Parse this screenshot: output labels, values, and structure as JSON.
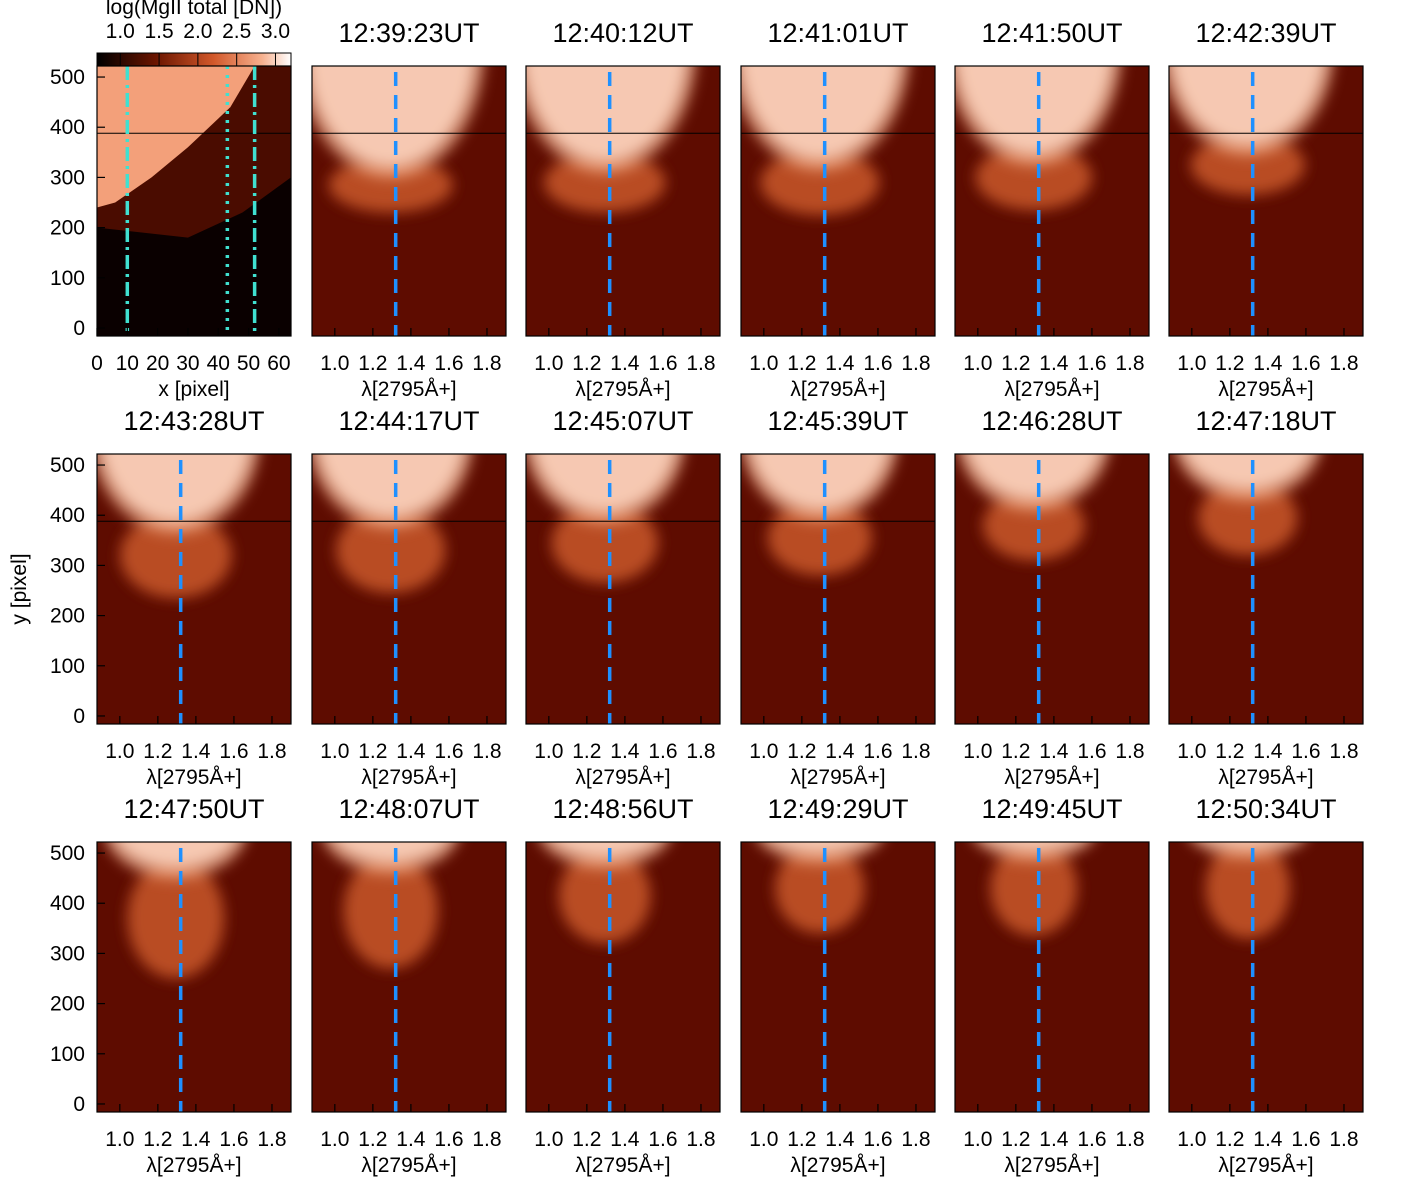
{
  "chart_data": [
    {
      "type": "image",
      "colorbar_label": "log(MgII total [DN])",
      "clim": [
        0.7,
        3.2
      ],
      "cticks": [
        {
          "value": 1,
          "label": "1.0"
        },
        1.5,
        {
          "value": 2,
          "label": "2.0"
        },
        2.5,
        {
          "value": 3,
          "label": "3.0"
        }
      ],
      "xlabel": "x [pixel]",
      "xlim": [
        0,
        64
      ],
      "xticks": [
        0,
        10,
        20,
        30,
        40,
        50,
        60
      ],
      "ylim": [
        -16,
        522
      ],
      "yticks": [
        0,
        100,
        200,
        300,
        400,
        500
      ],
      "vlines": [
        10,
        43,
        52
      ],
      "vline_styles": [
        "dashdot",
        "dotted",
        "dashdot"
      ],
      "vline_color": "#40e0d0"
    },
    {
      "type": "spectrum",
      "title": "12:39:23UT",
      "xlabel": "λ[2795Å+]",
      "xlim": [
        0.88,
        1.9
      ],
      "xticks": [
        {
          "value": 1,
          "label": "1.0"
        },
        1.2,
        1.4,
        1.6,
        1.8
      ],
      "ylim": [
        -16,
        522
      ],
      "vline": 1.32,
      "vline_color": "#1e90ff"
    },
    {
      "type": "spectrum",
      "title": "12:40:12UT",
      "xlabel": "λ[2795Å+]",
      "xlim": [
        0.88,
        1.9
      ],
      "xticks": [
        {
          "value": 1,
          "label": "1.0"
        },
        1.2,
        1.4,
        1.6,
        1.8
      ],
      "ylim": [
        -16,
        522
      ],
      "vline": 1.32,
      "vline_color": "#1e90ff"
    },
    {
      "type": "spectrum",
      "title": "12:41:01UT",
      "xlabel": "λ[2795Å+]",
      "xlim": [
        0.88,
        1.9
      ],
      "xticks": [
        {
          "value": 1,
          "label": "1.0"
        },
        1.2,
        1.4,
        1.6,
        1.8
      ],
      "ylim": [
        -16,
        522
      ],
      "vline": 1.32,
      "vline_color": "#1e90ff"
    },
    {
      "type": "spectrum",
      "title": "12:41:50UT",
      "xlabel": "λ[2795Å+]",
      "xlim": [
        0.88,
        1.9
      ],
      "xticks": [
        {
          "value": 1,
          "label": "1.0"
        },
        1.2,
        1.4,
        1.6,
        1.8
      ],
      "ylim": [
        -16,
        522
      ],
      "vline": 1.32,
      "vline_color": "#1e90ff"
    },
    {
      "type": "spectrum",
      "title": "12:42:39UT",
      "xlabel": "λ[2795Å+]",
      "xlim": [
        0.88,
        1.9
      ],
      "xticks": [
        {
          "value": 1,
          "label": "1.0"
        },
        1.2,
        1.4,
        1.6,
        1.8
      ],
      "ylim": [
        -16,
        522
      ],
      "vline": 1.32,
      "vline_color": "#1e90ff"
    },
    {
      "type": "spectrum",
      "title": "12:43:28UT",
      "xlabel": "λ[2795Å+]",
      "ylabel": "y [pixel]",
      "xlim": [
        0.88,
        1.9
      ],
      "xticks": [
        {
          "value": 1,
          "label": "1.0"
        },
        1.2,
        1.4,
        1.6,
        1.8
      ],
      "ylim": [
        -16,
        522
      ],
      "yticks": [
        0,
        100,
        200,
        300,
        400,
        500
      ],
      "vline": 1.32,
      "vline_color": "#1e90ff"
    },
    {
      "type": "spectrum",
      "title": "12:44:17UT",
      "xlabel": "λ[2795Å+]",
      "xlim": [
        0.88,
        1.9
      ],
      "xticks": [
        {
          "value": 1,
          "label": "1.0"
        },
        1.2,
        1.4,
        1.6,
        1.8
      ],
      "ylim": [
        -16,
        522
      ],
      "vline": 1.32,
      "vline_color": "#1e90ff"
    },
    {
      "type": "spectrum",
      "title": "12:45:07UT",
      "xlabel": "λ[2795Å+]",
      "xlim": [
        0.88,
        1.9
      ],
      "xticks": [
        {
          "value": 1,
          "label": "1.0"
        },
        1.2,
        1.4,
        1.6,
        1.8
      ],
      "ylim": [
        -16,
        522
      ],
      "vline": 1.32,
      "vline_color": "#1e90ff"
    },
    {
      "type": "spectrum",
      "title": "12:45:39UT",
      "xlabel": "λ[2795Å+]",
      "xlim": [
        0.88,
        1.9
      ],
      "xticks": [
        {
          "value": 1,
          "label": "1.0"
        },
        1.2,
        1.4,
        1.6,
        1.8
      ],
      "ylim": [
        -16,
        522
      ],
      "vline": 1.32,
      "vline_color": "#1e90ff"
    },
    {
      "type": "spectrum",
      "title": "12:46:28UT",
      "xlabel": "λ[2795Å+]",
      "xlim": [
        0.88,
        1.9
      ],
      "xticks": [
        {
          "value": 1,
          "label": "1.0"
        },
        1.2,
        1.4,
        1.6,
        1.8
      ],
      "ylim": [
        -16,
        522
      ],
      "vline": 1.32,
      "vline_color": "#1e90ff"
    },
    {
      "type": "spectrum",
      "title": "12:47:18UT",
      "xlabel": "λ[2795Å+]",
      "xlim": [
        0.88,
        1.9
      ],
      "xticks": [
        {
          "value": 1,
          "label": "1.0"
        },
        1.2,
        1.4,
        1.6,
        1.8
      ],
      "ylim": [
        -16,
        522
      ],
      "vline": 1.32,
      "vline_color": "#1e90ff"
    },
    {
      "type": "spectrum",
      "title": "12:47:50UT",
      "xlabel": "λ[2795Å+]",
      "xlim": [
        0.88,
        1.9
      ],
      "xticks": [
        {
          "value": 1,
          "label": "1.0"
        },
        1.2,
        1.4,
        1.6,
        1.8
      ],
      "ylim": [
        -16,
        522
      ],
      "yticks": [
        0,
        100,
        200,
        300,
        400,
        500
      ],
      "vline": 1.32,
      "vline_color": "#1e90ff"
    },
    {
      "type": "spectrum",
      "title": "12:48:07UT",
      "xlabel": "λ[2795Å+]",
      "xlim": [
        0.88,
        1.9
      ],
      "xticks": [
        {
          "value": 1,
          "label": "1.0"
        },
        1.2,
        1.4,
        1.6,
        1.8
      ],
      "ylim": [
        -16,
        522
      ],
      "vline": 1.32,
      "vline_color": "#1e90ff"
    },
    {
      "type": "spectrum",
      "title": "12:48:56UT",
      "xlabel": "λ[2795Å+]",
      "xlim": [
        0.88,
        1.9
      ],
      "xticks": [
        {
          "value": 1,
          "label": "1.0"
        },
        1.2,
        1.4,
        1.6,
        1.8
      ],
      "ylim": [
        -16,
        522
      ],
      "vline": 1.32,
      "vline_color": "#1e90ff"
    },
    {
      "type": "spectrum",
      "title": "12:49:29UT",
      "xlabel": "λ[2795Å+]",
      "xlim": [
        0.88,
        1.9
      ],
      "xticks": [
        {
          "value": 1,
          "label": "1.0"
        },
        1.2,
        1.4,
        1.6,
        1.8
      ],
      "ylim": [
        -16,
        522
      ],
      "vline": 1.32,
      "vline_color": "#1e90ff"
    },
    {
      "type": "spectrum",
      "title": "12:49:45UT",
      "xlabel": "λ[2795Å+]",
      "xlim": [
        0.88,
        1.9
      ],
      "xticks": [
        {
          "value": 1,
          "label": "1.0"
        },
        1.2,
        1.4,
        1.6,
        1.8
      ],
      "ylim": [
        -16,
        522
      ],
      "vline": 1.32,
      "vline_color": "#1e90ff"
    },
    {
      "type": "spectrum",
      "title": "12:50:34UT",
      "xlabel": "λ[2795Å+]",
      "xlim": [
        0.88,
        1.9
      ],
      "xticks": [
        {
          "value": 1,
          "label": "1.0"
        },
        1.2,
        1.4,
        1.6,
        1.8
      ],
      "ylim": [
        -16,
        522
      ],
      "vline": 1.32,
      "vline_color": "#1e90ff"
    }
  ]
}
